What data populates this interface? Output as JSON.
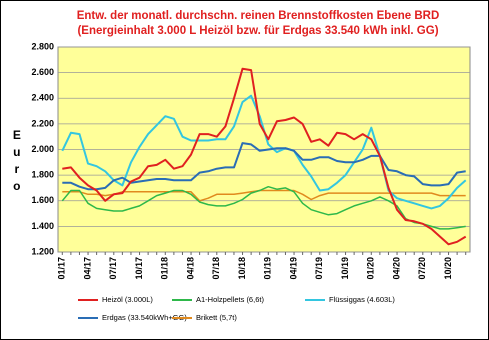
{
  "chart_data": {
    "type": "line",
    "title": "Entw. der monatl. durchschn. reinen Brennstoffkosten Ebene BRD",
    "subtitle": "(Energieinhalt 3.000 L Heizöl bzw. für Erdgas 33.540 kWh inkl. GG)",
    "y_label": "Euro",
    "categories": [
      "01/17",
      null,
      null,
      "04/17",
      null,
      null,
      "07/17",
      null,
      null,
      "10/17",
      null,
      null,
      "01/18",
      null,
      null,
      "04/18",
      null,
      null,
      "07/18",
      null,
      null,
      "10/18",
      null,
      null,
      "01/19",
      null,
      null,
      "04/19",
      null,
      null,
      "07/19",
      null,
      null,
      "10/19",
      null,
      null,
      "01/20",
      null,
      null,
      "04/20",
      null,
      null,
      "07/20",
      null,
      null,
      "10/20",
      null,
      null
    ],
    "ylim": [
      1200,
      2800
    ],
    "yticks": [
      {
        "value": 1200,
        "label": "1.200"
      },
      {
        "value": 1400,
        "label": "1.400"
      },
      {
        "value": 1600,
        "label": "1.600"
      },
      {
        "value": 1800,
        "label": "1.800"
      },
      {
        "value": 2000,
        "label": "2.000"
      },
      {
        "value": 2200,
        "label": "2.200"
      },
      {
        "value": 2400,
        "label": "2.400"
      },
      {
        "value": 2600,
        "label": "2.600"
      },
      {
        "value": 2800,
        "label": "2.800"
      }
    ],
    "grid": true,
    "series": [
      {
        "name": "Heizöl (3.000L)",
        "color": "#e02020",
        "width": 2,
        "values": [
          1850,
          1860,
          1780,
          1720,
          1680,
          1600,
          1650,
          1660,
          1750,
          1780,
          1870,
          1880,
          1920,
          1850,
          1870,
          1960,
          2120,
          2120,
          2100,
          2180,
          2400,
          2630,
          2620,
          2200,
          2080,
          2220,
          2230,
          2250,
          2200,
          2060,
          2080,
          2030,
          2130,
          2120,
          2080,
          2120,
          2080,
          1950,
          1700,
          1530,
          1450,
          1440,
          1420,
          1380,
          1320,
          1260,
          1280,
          1320
        ]
      },
      {
        "name": "A1-Holzpellets (6,6t)",
        "color": "#2eb84a",
        "width": 1.5,
        "values": [
          1600,
          1680,
          1680,
          1580,
          1540,
          1530,
          1520,
          1520,
          1540,
          1560,
          1600,
          1640,
          1660,
          1680,
          1680,
          1650,
          1590,
          1570,
          1560,
          1560,
          1580,
          1610,
          1660,
          1680,
          1710,
          1690,
          1700,
          1670,
          1580,
          1530,
          1510,
          1490,
          1500,
          1530,
          1560,
          1580,
          1600,
          1630,
          1600,
          1560,
          1460,
          1430,
          1420,
          1400,
          1380,
          1380,
          1390,
          1400
        ]
      },
      {
        "name": "Flüssiggas (4.603L)",
        "color": "#33c6e0",
        "width": 2,
        "values": [
          1990,
          2130,
          2120,
          1890,
          1870,
          1830,
          1760,
          1720,
          1900,
          2020,
          2120,
          2190,
          2260,
          2240,
          2100,
          2070,
          2070,
          2070,
          2080,
          2080,
          2180,
          2370,
          2420,
          2260,
          2040,
          1980,
          2010,
          1990,
          1880,
          1790,
          1680,
          1690,
          1740,
          1800,
          1900,
          2000,
          2170,
          1950,
          1680,
          1620,
          1600,
          1580,
          1560,
          1540,
          1560,
          1620,
          1700,
          1760
        ]
      },
      {
        "name": "Erdgas (33.540kWh+GG)",
        "color": "#2a6db5",
        "width": 2,
        "values": [
          1740,
          1740,
          1710,
          1690,
          1690,
          1700,
          1760,
          1780,
          1740,
          1750,
          1760,
          1770,
          1770,
          1760,
          1760,
          1760,
          1820,
          1830,
          1850,
          1860,
          1860,
          2050,
          2040,
          1990,
          2000,
          2010,
          2010,
          1990,
          1920,
          1920,
          1940,
          1940,
          1910,
          1900,
          1900,
          1920,
          1950,
          1950,
          1840,
          1830,
          1800,
          1790,
          1730,
          1720,
          1720,
          1730,
          1820,
          1830
        ]
      },
      {
        "name": "Brikett (5,7t)",
        "color": "#e08a1e",
        "width": 1.5,
        "values": [
          1670,
          1670,
          1670,
          1650,
          1650,
          1640,
          1650,
          1670,
          1670,
          1670,
          1670,
          1670,
          1670,
          1670,
          1670,
          1670,
          1600,
          1620,
          1650,
          1650,
          1650,
          1660,
          1670,
          1680,
          1680,
          1680,
          1680,
          1680,
          1650,
          1610,
          1640,
          1660,
          1660,
          1660,
          1660,
          1660,
          1660,
          1660,
          1660,
          1660,
          1660,
          1660,
          1660,
          1660,
          1640,
          1640,
          1640,
          1640
        ]
      }
    ]
  }
}
